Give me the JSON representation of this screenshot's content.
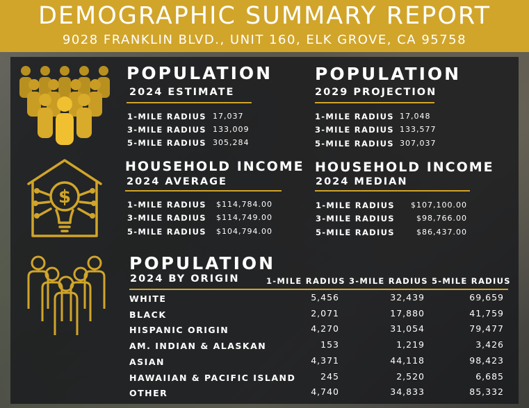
{
  "header": {
    "title": "DEMOGRAPHIC SUMMARY REPORT",
    "address": "9028 FRANKLIN BLVD., UNIT 160, ELK GROVE, CA 95758"
  },
  "population_2024": {
    "title": "POPULATION",
    "subtitle": "2024 ESTIMATE",
    "rows": [
      {
        "label": "1-MILE RADIUS",
        "value": "17,037"
      },
      {
        "label": "3-MILE RADIUS",
        "value": "133,009"
      },
      {
        "label": "5-MILE RADIUS",
        "value": "305,284"
      }
    ]
  },
  "population_2029": {
    "title": "POPULATION",
    "subtitle": "2029 PROJECTION",
    "rows": [
      {
        "label": "1-MILE RADIUS",
        "value": "17,048"
      },
      {
        "label": "3-MILE RADIUS",
        "value": "133,577"
      },
      {
        "label": "5-MILE RADIUS",
        "value": "307,037"
      }
    ]
  },
  "income_average": {
    "title": "HOUSEHOLD INCOME",
    "subtitle": "2024 AVERAGE",
    "rows": [
      {
        "label": "1-MILE RADIUS",
        "value": "$114,784.00"
      },
      {
        "label": "3-MILE RADIUS",
        "value": "$114,749.00"
      },
      {
        "label": "5-MILE RADIUS",
        "value": "$104,794.00"
      }
    ]
  },
  "income_median": {
    "title": "HOUSEHOLD INCOME",
    "subtitle": "2024 MEDIAN",
    "rows": [
      {
        "label": "1-MILE RADIUS",
        "value": "$107,100.00"
      },
      {
        "label": "3-MILE RADIUS",
        "value": "$98,766.00"
      },
      {
        "label": "5-MILE RADIUS",
        "value": "$86,437.00"
      }
    ]
  },
  "origin": {
    "title": "POPULATION",
    "subtitle": "2024 BY ORIGIN",
    "columns": [
      "1-MILE RADIUS",
      "3-MILE RADIUS",
      "5-MILE RADIUS"
    ],
    "rows": [
      {
        "label": "WHITE",
        "v1": "5,456",
        "v3": "32,439",
        "v5": "69,659"
      },
      {
        "label": "BLACK",
        "v1": "2,071",
        "v3": "17,880",
        "v5": "41,759"
      },
      {
        "label": "HISPANIC ORIGIN",
        "v1": "4,270",
        "v3": "31,054",
        "v5": "79,477"
      },
      {
        "label": "AM. INDIAN & ALASKAN",
        "v1": "153",
        "v3": "1,219",
        "v5": "3,426"
      },
      {
        "label": "ASIAN",
        "v1": "4,371",
        "v3": "44,118",
        "v5": "98,423"
      },
      {
        "label": "HAWAIIAN & PACIFIC ISLAND",
        "v1": "245",
        "v3": "2,520",
        "v5": "6,685"
      },
      {
        "label": "OTHER",
        "v1": "4,740",
        "v3": "34,833",
        "v5": "85,332"
      }
    ]
  },
  "icons": [
    "crowd-icon",
    "house-income-icon",
    "people-group-icon"
  ],
  "colors": {
    "accent": "#d1a52a",
    "panel": "#16181c",
    "text": "#ffffff"
  }
}
